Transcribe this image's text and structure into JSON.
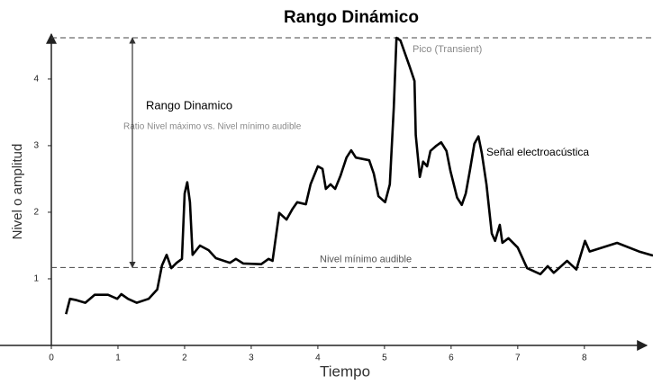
{
  "chart_data": {
    "type": "line",
    "title": "Rango Dinámico",
    "xlabel": "Tiempo",
    "ylabel": "Nivel o amplitud",
    "xlim": [
      0,
      9.03
    ],
    "ylim": [
      0,
      4.62
    ],
    "xticks": [
      0,
      1,
      2,
      3,
      4,
      5,
      6,
      7,
      8
    ],
    "yticks": [
      1,
      2,
      3,
      4
    ],
    "annotations": [
      "Rango Dinamico",
      "Ratio Nivel máximo vs. Nivel mínimo audible"
    ],
    "reference_lines": [
      {
        "label": "Nivel mínimo audible",
        "value": 1.17
      },
      {
        "label": "Pico (Transient)",
        "value": 4.62
      }
    ],
    "x": [
      0.22,
      0.28,
      0.38,
      0.51,
      0.65,
      0.85,
      0.99,
      1.05,
      1.15,
      1.28,
      1.46,
      1.59,
      1.66,
      1.73,
      1.8,
      1.88,
      1.96,
      2.0,
      2.04,
      2.08,
      2.12,
      2.23,
      2.36,
      2.47,
      2.68,
      2.77,
      2.88,
      3.15,
      3.26,
      3.32,
      3.42,
      3.53,
      3.62,
      3.69,
      3.82,
      3.89,
      4.0,
      4.07,
      4.12,
      4.19,
      4.26,
      4.34,
      4.43,
      4.5,
      4.57,
      4.77,
      4.84,
      4.91,
      5.01,
      5.08,
      5.14,
      5.18,
      5.24,
      5.31,
      5.38,
      5.45,
      5.47,
      5.53,
      5.58,
      5.64,
      5.69,
      5.78,
      5.85,
      5.93,
      5.99,
      6.09,
      6.16,
      6.22,
      6.28,
      6.35,
      6.41,
      6.46,
      6.53,
      6.61,
      6.66,
      6.73,
      6.77,
      6.86,
      7.0,
      7.14,
      7.34,
      7.45,
      7.54,
      7.74,
      7.88,
      8.01,
      8.08,
      8.49,
      8.82,
      9.03
    ],
    "series": [
      {
        "name": "Señal electroacústica",
        "color": "#000000",
        "values": [
          0.47,
          0.7,
          0.68,
          0.64,
          0.76,
          0.76,
          0.7,
          0.77,
          0.7,
          0.64,
          0.7,
          0.84,
          1.2,
          1.36,
          1.16,
          1.24,
          1.3,
          2.28,
          2.45,
          2.15,
          1.36,
          1.5,
          1.43,
          1.31,
          1.24,
          1.3,
          1.23,
          1.22,
          1.3,
          1.27,
          1.99,
          1.89,
          2.05,
          2.15,
          2.12,
          2.42,
          2.69,
          2.65,
          2.35,
          2.42,
          2.35,
          2.55,
          2.82,
          2.93,
          2.82,
          2.78,
          2.58,
          2.24,
          2.15,
          2.42,
          3.57,
          4.62,
          4.58,
          4.38,
          4.18,
          3.97,
          3.16,
          2.53,
          2.76,
          2.69,
          2.92,
          3.0,
          3.05,
          2.92,
          2.62,
          2.22,
          2.11,
          2.28,
          2.62,
          3.03,
          3.14,
          2.89,
          2.42,
          1.68,
          1.57,
          1.81,
          1.54,
          1.61,
          1.47,
          1.16,
          1.07,
          1.19,
          1.09,
          1.27,
          1.14,
          1.57,
          1.41,
          1.54,
          1.41,
          1.35
        ]
      }
    ]
  }
}
